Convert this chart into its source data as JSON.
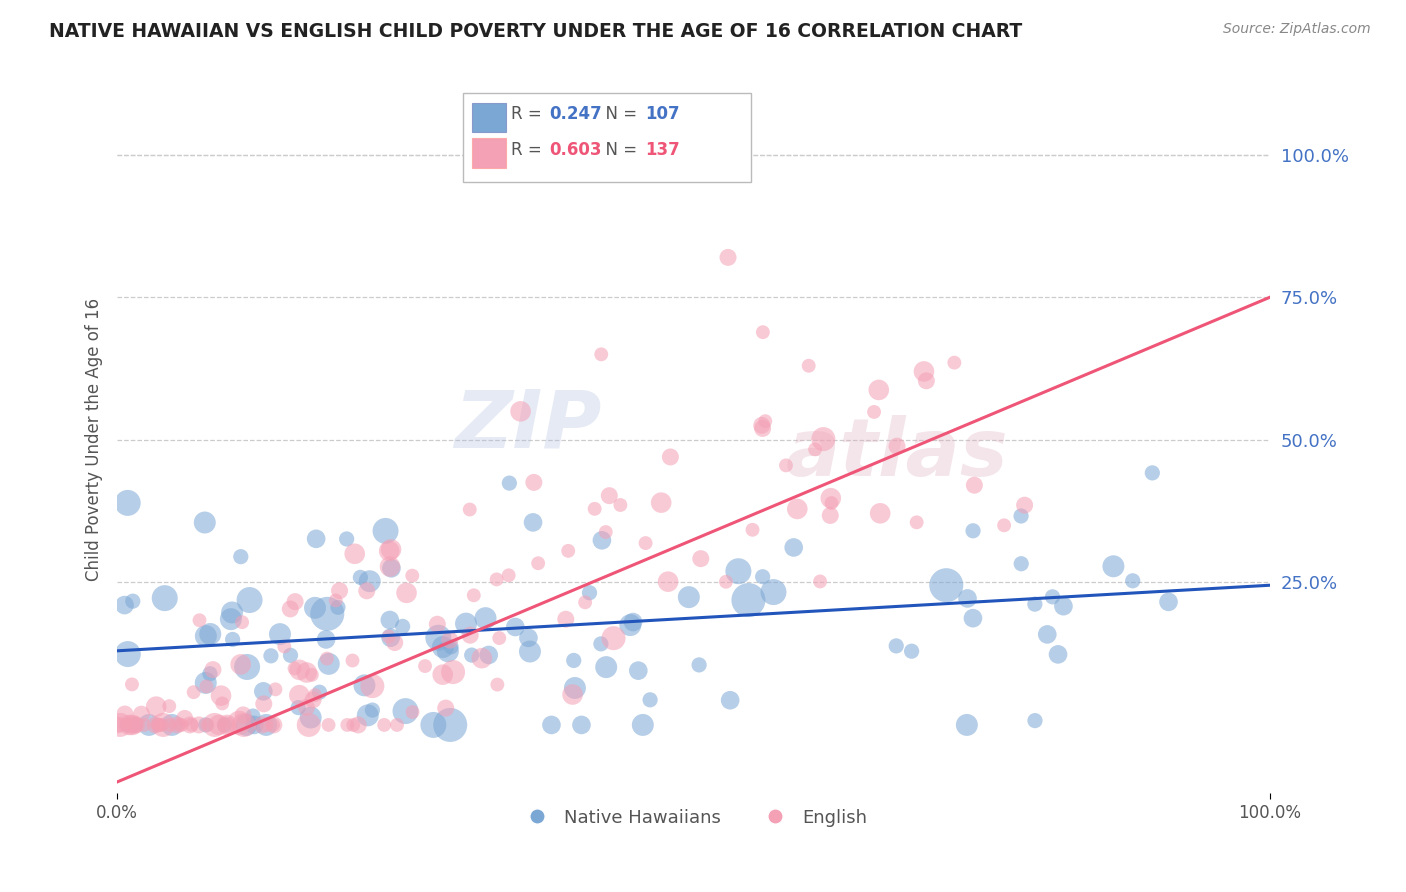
{
  "title": "NATIVE HAWAIIAN VS ENGLISH CHILD POVERTY UNDER THE AGE OF 16 CORRELATION CHART",
  "source": "Source: ZipAtlas.com",
  "ylabel": "Child Poverty Under the Age of 16",
  "xlim": [
    0,
    1
  ],
  "ylim": [
    -0.12,
    1.12
  ],
  "ytick_labels": [
    "100.0%",
    "75.0%",
    "50.0%",
    "25.0%"
  ],
  "ytick_values": [
    1.0,
    0.75,
    0.5,
    0.25
  ],
  "ytick_color_blue": "#4472c4",
  "ytick_color_pink": "#ff6688",
  "watermark": "ZIPatlas",
  "blue_color": "#7ba7d4",
  "pink_color": "#f4a0b5",
  "blue_line_color": "#2255bb",
  "pink_line_color": "#ee5577",
  "background_color": "#ffffff",
  "grid_color": "#cccccc",
  "title_color": "#222222",
  "blue_R": 0.247,
  "blue_N": 107,
  "pink_R": 0.603,
  "pink_N": 137,
  "blue_intercept": 0.13,
  "blue_slope": 0.115,
  "pink_intercept": -0.1,
  "pink_slope": 0.85,
  "legend_R_color_blue": "#4472c4",
  "legend_R_color_pink": "#ee5577",
  "legend_N_color_blue": "#4472c4",
  "legend_N_color_pink": "#ee5577"
}
